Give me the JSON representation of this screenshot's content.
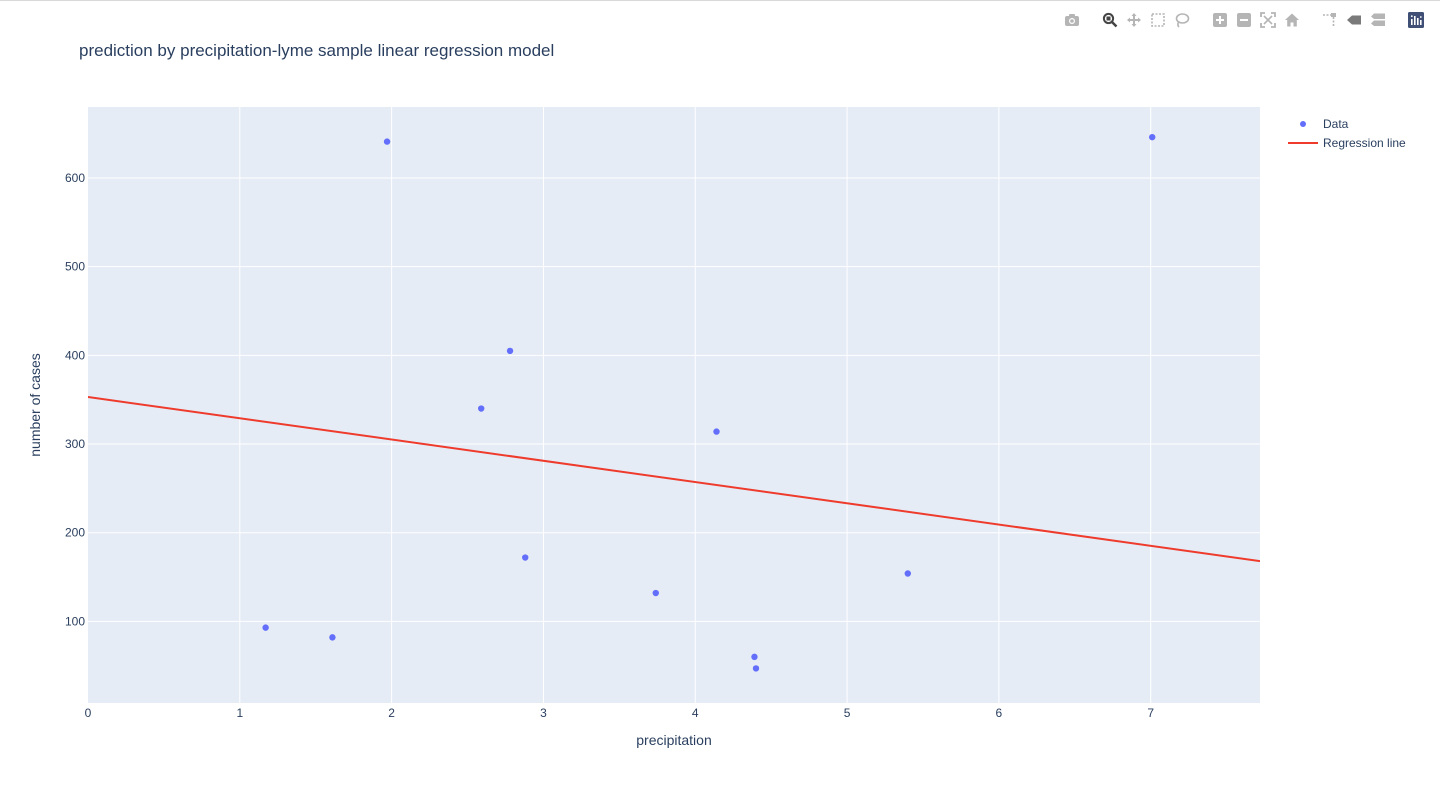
{
  "modebar": {
    "buttons": [
      {
        "name": "camera-icon",
        "group": 0
      },
      {
        "name": "zoom-icon",
        "group": 1,
        "active": true
      },
      {
        "name": "pan-icon",
        "group": 1
      },
      {
        "name": "box-select-icon",
        "group": 1
      },
      {
        "name": "lasso-select-icon",
        "group": 1
      },
      {
        "name": "zoom-in-icon",
        "group": 2
      },
      {
        "name": "zoom-out-icon",
        "group": 2
      },
      {
        "name": "autoscale-icon",
        "group": 2
      },
      {
        "name": "reset-axes-icon",
        "group": 2
      },
      {
        "name": "spike-lines-icon",
        "group": 3
      },
      {
        "name": "hover-closest-icon",
        "group": 3
      },
      {
        "name": "hover-compare-icon",
        "group": 3
      },
      {
        "name": "plotly-logo-icon",
        "group": 4
      }
    ]
  },
  "chart_data": {
    "type": "scatter",
    "title": "prediction by precipitation-lyme sample linear regression model",
    "xlabel": "precipitation",
    "ylabel": "number of cases",
    "xlim": [
      0,
      7.72
    ],
    "ylim": [
      8,
      680
    ],
    "xticks": [
      0,
      1,
      2,
      3,
      4,
      5,
      6,
      7
    ],
    "yticks": [
      100,
      200,
      300,
      400,
      500,
      600
    ],
    "grid": true,
    "legend_position": "top-right",
    "plot_bg": "#e5ecf6",
    "series": [
      {
        "name": "Data",
        "mode": "markers",
        "color": "#636efa",
        "points": [
          {
            "x": 1.17,
            "y": 93
          },
          {
            "x": 1.61,
            "y": 82
          },
          {
            "x": 1.97,
            "y": 641
          },
          {
            "x": 2.59,
            "y": 340
          },
          {
            "x": 2.78,
            "y": 405
          },
          {
            "x": 2.88,
            "y": 172
          },
          {
            "x": 3.74,
            "y": 132
          },
          {
            "x": 4.14,
            "y": 314
          },
          {
            "x": 4.39,
            "y": 60
          },
          {
            "x": 4.4,
            "y": 47
          },
          {
            "x": 5.4,
            "y": 154
          },
          {
            "x": 7.01,
            "y": 646
          }
        ]
      },
      {
        "name": "Regression line",
        "mode": "lines",
        "color": "#ef3b2c",
        "points": [
          {
            "x": 0,
            "y": 353
          },
          {
            "x": 7.72,
            "y": 168
          }
        ]
      }
    ]
  }
}
